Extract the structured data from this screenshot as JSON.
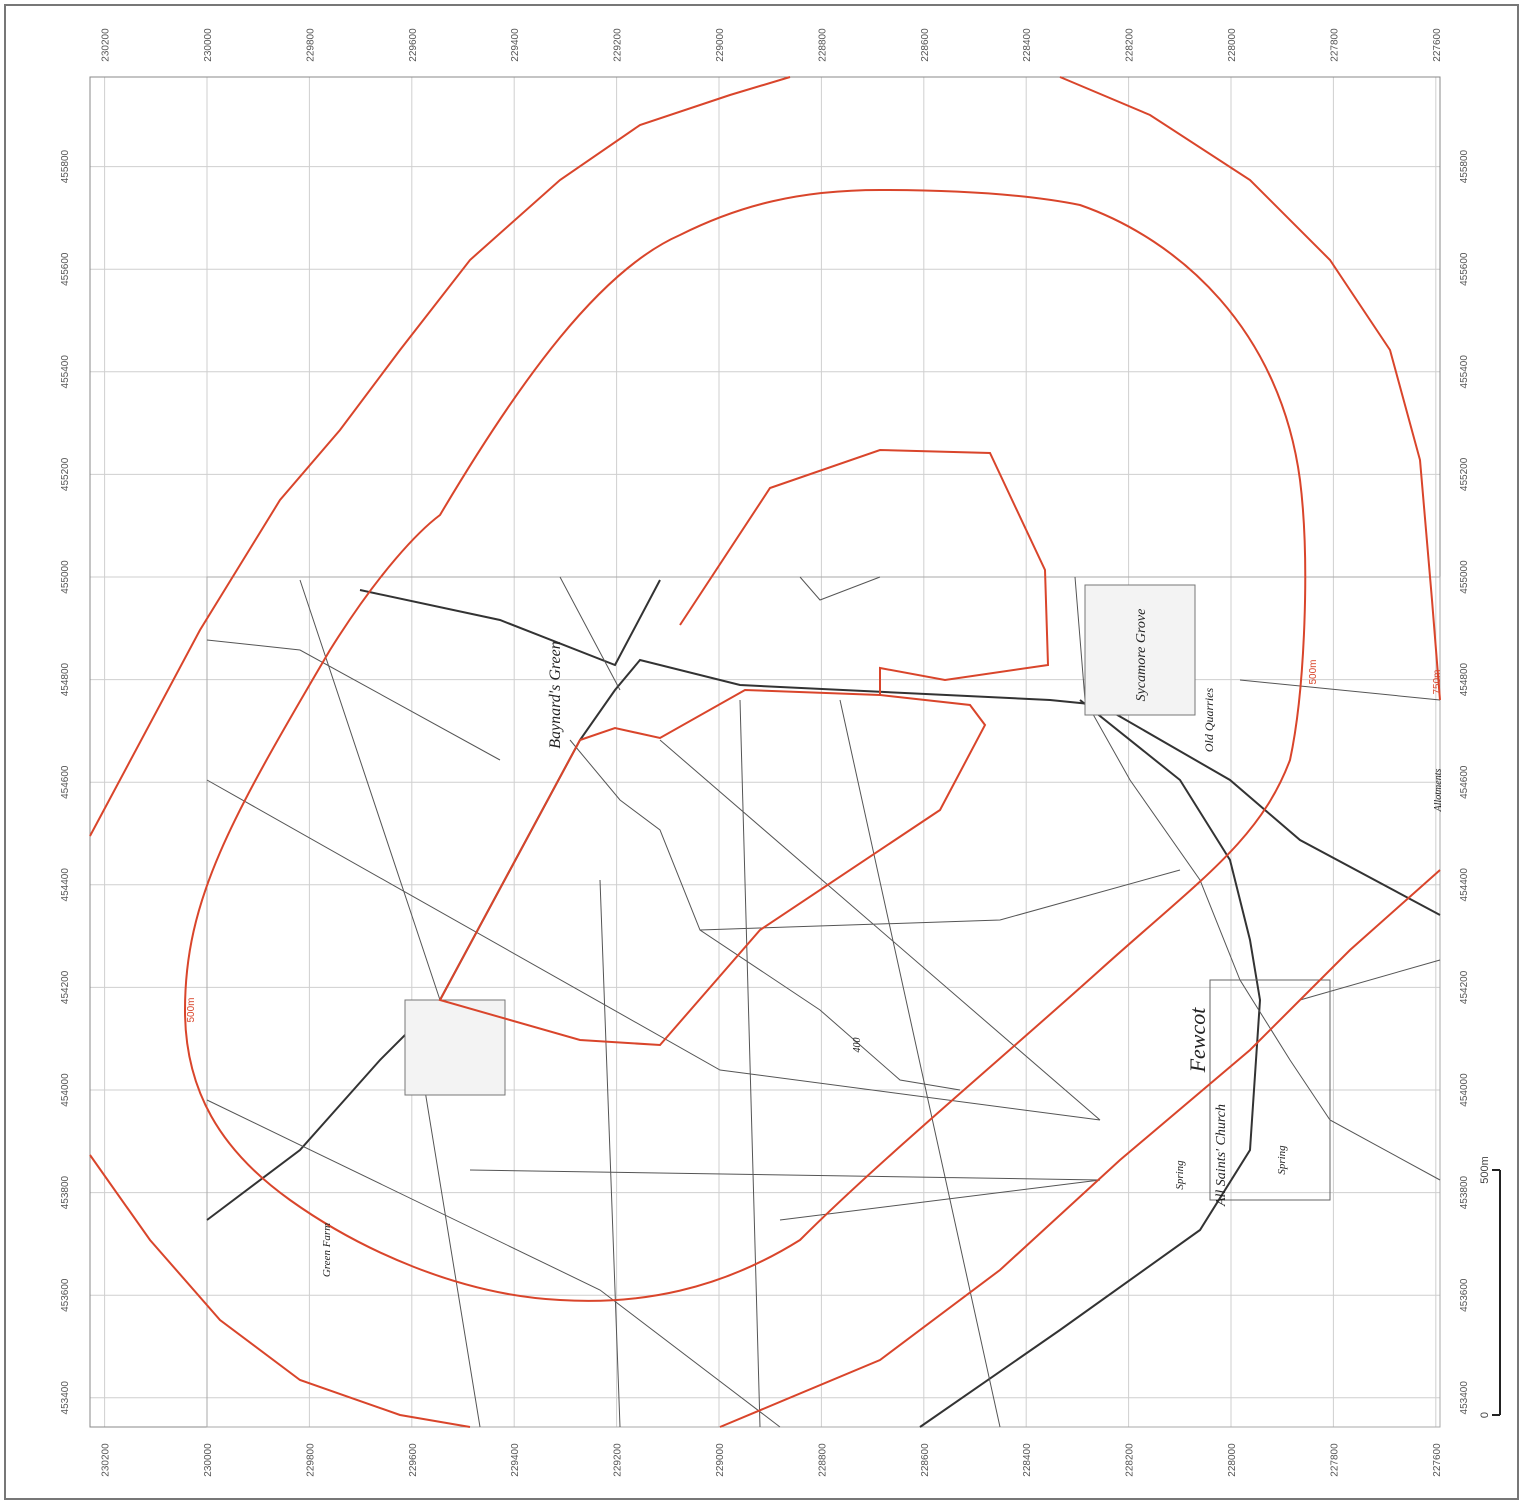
{
  "map": {
    "eastings": [
      230200,
      230000,
      229800,
      229600,
      229400,
      229200,
      229000,
      228800,
      228600,
      228400,
      228200,
      228000,
      227800,
      227600
    ],
    "northings": [
      455800,
      455600,
      455400,
      455200,
      455000,
      454800,
      454600,
      454400,
      454200,
      454000,
      453800,
      453600,
      453400
    ],
    "buffer_labels": [
      "500m",
      "500m",
      "750m"
    ],
    "place_names": [
      "Baynard's Green",
      "Fewcot",
      "Sycamore Grove",
      "Old Quarries",
      "All Saints' Church",
      "Spring",
      "Spring",
      "Allotments",
      "Green Farm",
      "400"
    ],
    "scale_bar": {
      "start": "0",
      "end": "500m"
    }
  }
}
